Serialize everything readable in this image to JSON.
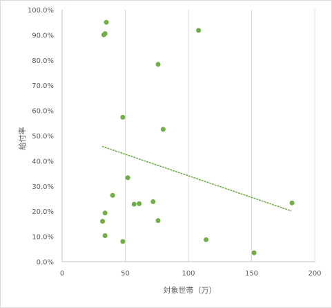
{
  "chart_data": {
    "type": "scatter",
    "title": "",
    "xlabel": "対象世帯（万）",
    "ylabel": "給付率",
    "xlim": [
      0,
      200
    ],
    "ylim": [
      0,
      1
    ],
    "x_ticks": [
      "0",
      "50",
      "100",
      "150",
      "200"
    ],
    "y_ticks": [
      "0.0%",
      "10.0%",
      "20.0%",
      "30.0%",
      "40.0%",
      "50.0%",
      "60.0%",
      "70.0%",
      "80.0%",
      "90.0%",
      "100.0%"
    ],
    "grid": "vertical",
    "legend": "none",
    "marker_color": "#70ad47",
    "trendline": {
      "type": "linear",
      "style": "dotted",
      "color": "#70ad47",
      "from": [
        32,
        0.457
      ],
      "to": [
        181,
        0.202
      ]
    },
    "series": [
      {
        "points": [
          [
            35,
            0.95
          ],
          [
            34,
            0.905
          ],
          [
            33,
            0.9
          ],
          [
            108,
            0.918
          ],
          [
            76,
            0.783
          ],
          [
            48,
            0.573
          ],
          [
            80,
            0.525
          ],
          [
            52,
            0.333
          ],
          [
            40,
            0.263
          ],
          [
            72,
            0.238
          ],
          [
            57,
            0.228
          ],
          [
            61,
            0.23
          ],
          [
            182,
            0.233
          ],
          [
            34,
            0.193
          ],
          [
            32,
            0.16
          ],
          [
            76,
            0.163
          ],
          [
            34,
            0.103
          ],
          [
            48,
            0.08
          ],
          [
            114,
            0.087
          ],
          [
            152,
            0.035
          ]
        ]
      }
    ]
  }
}
